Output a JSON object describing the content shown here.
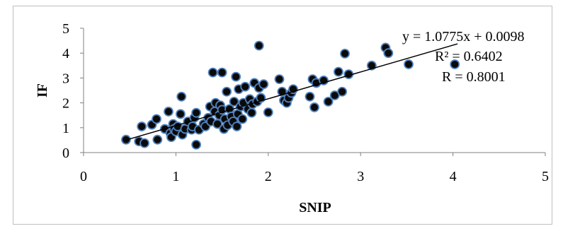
{
  "chart_data": {
    "type": "scatter",
    "title": "",
    "xlabel": "SNIP",
    "ylabel": "IF",
    "xlim": [
      0,
      5
    ],
    "ylim": [
      0,
      5
    ],
    "xticks": [
      0,
      1,
      2,
      3,
      4,
      5
    ],
    "yticks": [
      0,
      1,
      2,
      3,
      4,
      5
    ],
    "grid": false,
    "legend": "none",
    "marker_color": "#0a0a0a",
    "marker_edge_color": "#4f81bd",
    "trendline": {
      "slope": 1.0775,
      "intercept": 0.0098,
      "x_range": [
        0.45,
        4.05
      ],
      "color": "#000000"
    },
    "annotations": {
      "equation": "y = 1.0775x + 0.0098",
      "r_squared": "R² = 0.6402",
      "r": "R = 0.8001"
    },
    "points": [
      [
        0.46,
        0.52
      ],
      [
        0.6,
        0.45
      ],
      [
        0.63,
        1.05
      ],
      [
        0.66,
        0.38
      ],
      [
        0.74,
        1.12
      ],
      [
        0.79,
        1.35
      ],
      [
        0.8,
        0.52
      ],
      [
        0.88,
        0.95
      ],
      [
        0.92,
        1.65
      ],
      [
        0.94,
        0.78
      ],
      [
        0.95,
        0.62
      ],
      [
        0.97,
        1.15
      ],
      [
        0.98,
        0.95
      ],
      [
        1.0,
        0.85
      ],
      [
        1.02,
        1.05
      ],
      [
        1.05,
        1.55
      ],
      [
        1.06,
        2.25
      ],
      [
        1.07,
        0.72
      ],
      [
        1.1,
        0.95
      ],
      [
        1.13,
        1.25
      ],
      [
        1.17,
        0.92
      ],
      [
        1.18,
        1.05
      ],
      [
        1.2,
        1.4
      ],
      [
        1.22,
        1.6
      ],
      [
        1.22,
        0.32
      ],
      [
        1.25,
        0.92
      ],
      [
        1.3,
        1.15
      ],
      [
        1.32,
        1.05
      ],
      [
        1.35,
        1.4
      ],
      [
        1.37,
        1.85
      ],
      [
        1.38,
        1.25
      ],
      [
        1.4,
        3.22
      ],
      [
        1.42,
        1.65
      ],
      [
        1.43,
        2.0
      ],
      [
        1.45,
        1.15
      ],
      [
        1.47,
        1.5
      ],
      [
        1.48,
        1.9
      ],
      [
        1.5,
        3.22
      ],
      [
        1.5,
        1.72
      ],
      [
        1.52,
        0.95
      ],
      [
        1.53,
        1.35
      ],
      [
        1.55,
        2.45
      ],
      [
        1.56,
        1.1
      ],
      [
        1.58,
        1.75
      ],
      [
        1.6,
        1.45
      ],
      [
        1.62,
        1.25
      ],
      [
        1.63,
        2.05
      ],
      [
        1.65,
        3.05
      ],
      [
        1.66,
        1.05
      ],
      [
        1.67,
        1.55
      ],
      [
        1.68,
        2.55
      ],
      [
        1.7,
        1.85
      ],
      [
        1.72,
        1.35
      ],
      [
        1.73,
        2.0
      ],
      [
        1.75,
        2.65
      ],
      [
        1.78,
        1.75
      ],
      [
        1.8,
        2.15
      ],
      [
        1.82,
        1.6
      ],
      [
        1.83,
        1.95
      ],
      [
        1.85,
        2.8
      ],
      [
        1.88,
        2.05
      ],
      [
        1.9,
        2.6
      ],
      [
        1.9,
        4.3
      ],
      [
        1.92,
        2.2
      ],
      [
        1.95,
        2.75
      ],
      [
        2.0,
        1.62
      ],
      [
        2.12,
        2.95
      ],
      [
        2.15,
        2.45
      ],
      [
        2.17,
        2.1
      ],
      [
        2.2,
        2.0
      ],
      [
        2.22,
        2.2
      ],
      [
        2.25,
        2.4
      ],
      [
        2.27,
        2.55
      ],
      [
        2.45,
        2.25
      ],
      [
        2.48,
        2.95
      ],
      [
        2.5,
        1.82
      ],
      [
        2.52,
        2.8
      ],
      [
        2.6,
        2.9
      ],
      [
        2.65,
        2.05
      ],
      [
        2.72,
        2.3
      ],
      [
        2.76,
        3.25
      ],
      [
        2.8,
        2.45
      ],
      [
        2.83,
        3.98
      ],
      [
        2.87,
        3.15
      ],
      [
        3.12,
        3.5
      ],
      [
        3.27,
        4.22
      ],
      [
        3.3,
        4.0
      ],
      [
        3.52,
        3.55
      ],
      [
        4.02,
        3.55
      ]
    ]
  }
}
